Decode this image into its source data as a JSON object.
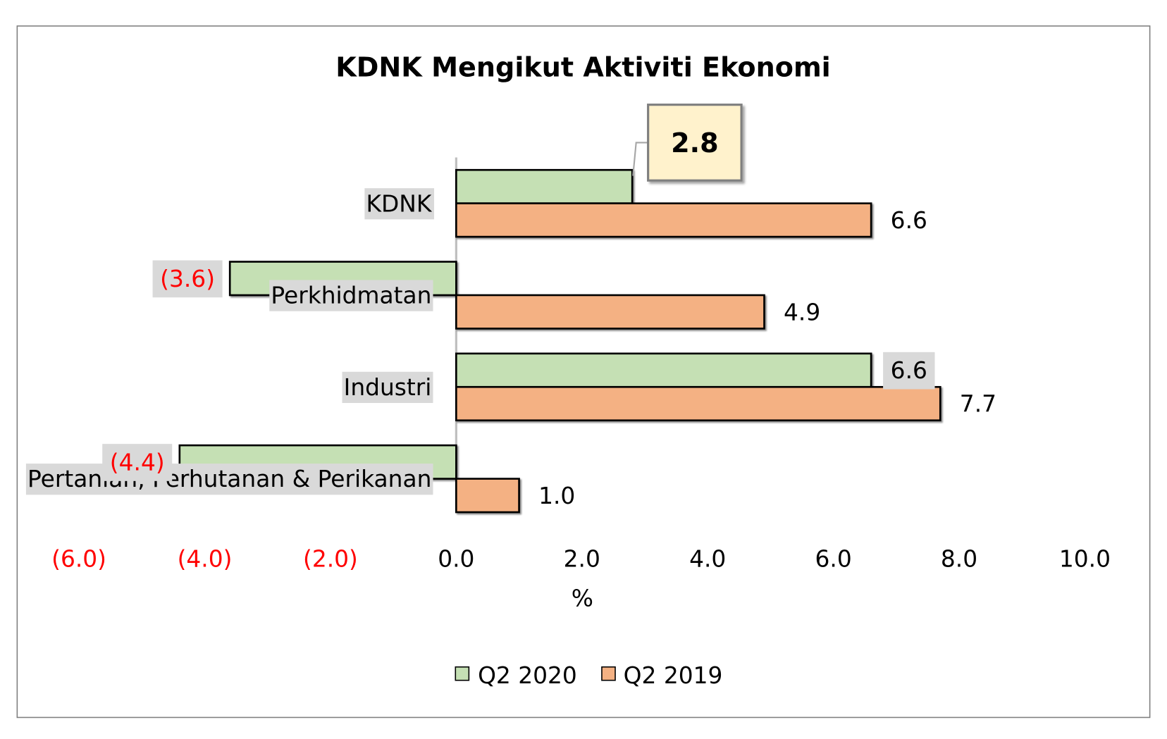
{
  "chart_data": {
    "type": "bar",
    "orientation": "horizontal",
    "title": "KDNK Mengikut Aktiviti Ekonomi",
    "xlabel": "%",
    "categories": [
      "KDNK",
      "Perkhidmatan",
      "Industri",
      "Pertanian, Perhutanan & Perikanan"
    ],
    "series": [
      {
        "name": "Q2 2020",
        "values": [
          2.8,
          -3.6,
          6.6,
          -4.4
        ],
        "labels": [
          "2.8",
          "(3.6)",
          "6.6",
          "(4.4)"
        ],
        "color": "#C5E0B4"
      },
      {
        "name": "Q2 2019",
        "values": [
          6.6,
          4.9,
          7.7,
          1.0
        ],
        "labels": [
          "6.6",
          "4.9",
          "7.7",
          "1.0"
        ],
        "color": "#F4B183"
      }
    ],
    "xlim": [
      -6,
      10
    ],
    "xticks": [
      -6,
      -4,
      -2,
      0,
      2,
      4,
      6,
      8,
      10
    ],
    "xtick_labels": [
      "(6.0)",
      "(4.0)",
      "(2.0)",
      "0.0",
      "2.0",
      "4.0",
      "6.0",
      "8.0",
      "10.0"
    ],
    "grid": false,
    "legend_position": "bottom",
    "negative_color": "#FF0000",
    "label_background": "#D9D9D9",
    "callout": {
      "series": 0,
      "category": 0,
      "fill": "#FFF2CC"
    }
  }
}
